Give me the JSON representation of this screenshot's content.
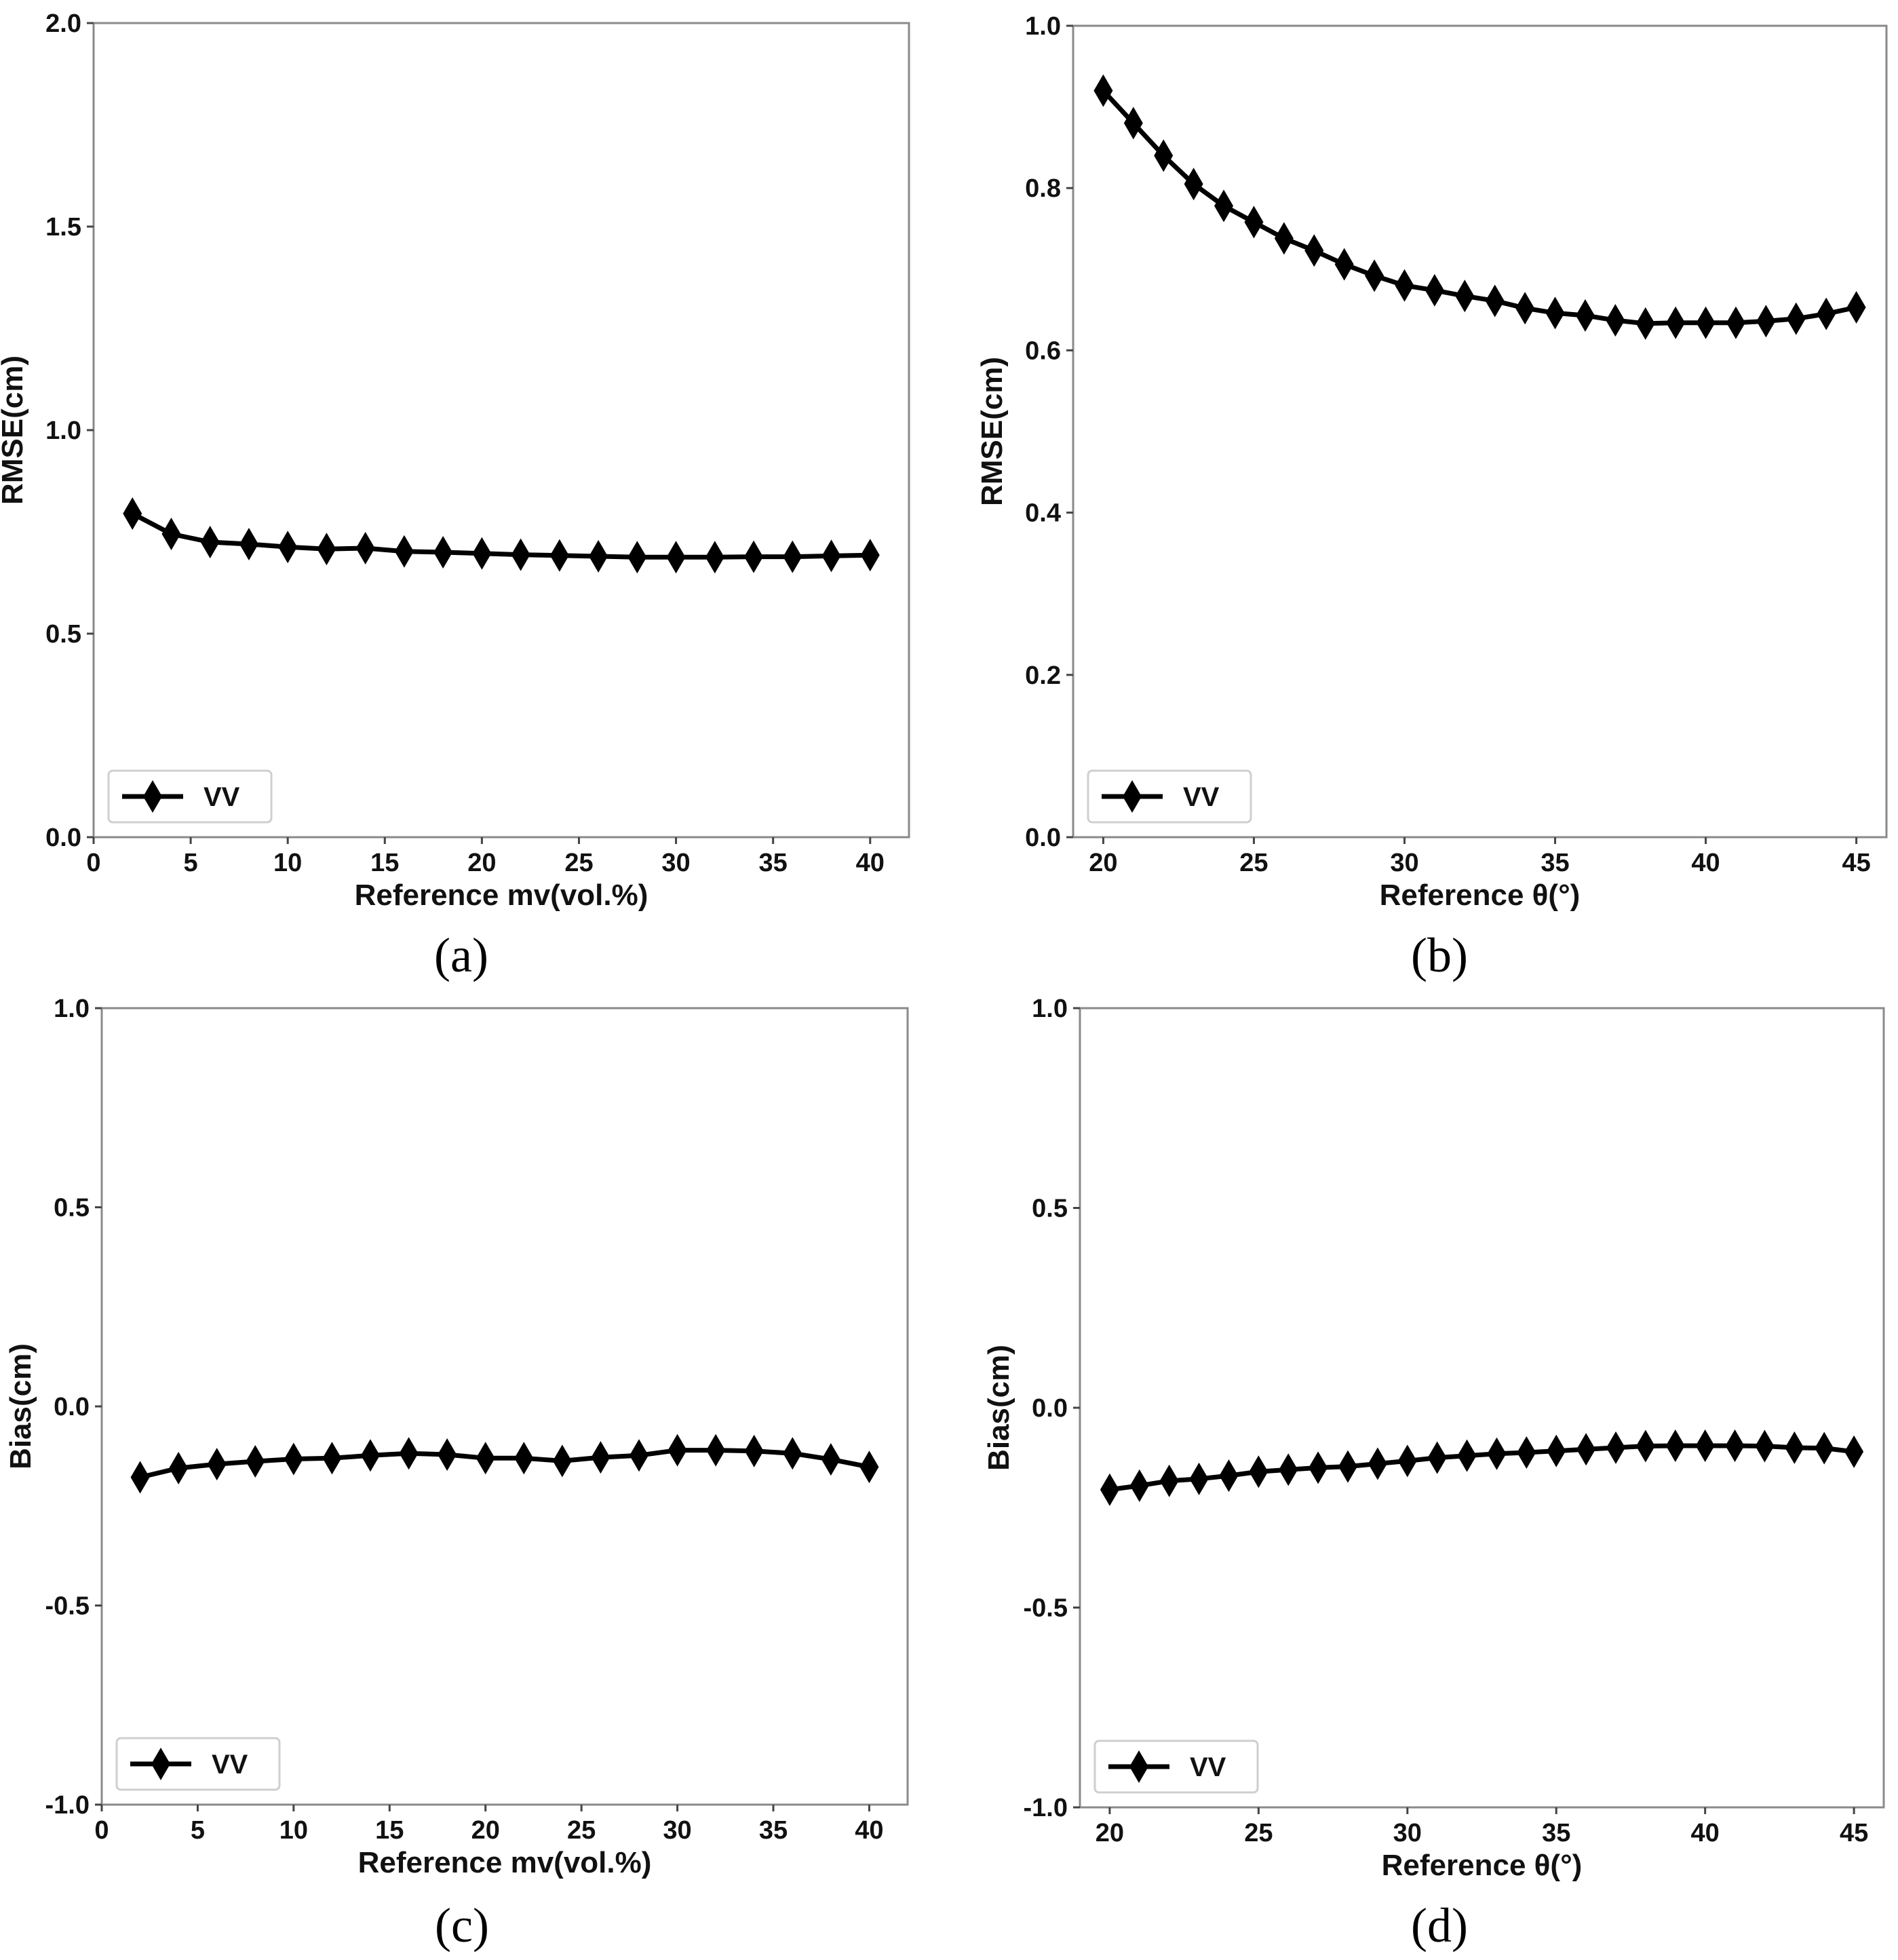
{
  "chart_data": [
    {
      "type": "line",
      "panel_label": "(a)",
      "xlabel": "Reference mv(vol.%)",
      "ylabel": "RMSE(cm)",
      "xlim": [
        0,
        42
      ],
      "ylim": [
        0.0,
        2.0
      ],
      "xticks": [
        0,
        5,
        10,
        15,
        20,
        25,
        30,
        35,
        40
      ],
      "xtick_labels": [
        "0",
        "5",
        "10",
        "15",
        "20",
        "25",
        "30",
        "35",
        "40"
      ],
      "yticks": [
        0.0,
        0.5,
        1.0,
        1.5,
        2.0
      ],
      "ytick_labels": [
        "0.0",
        "0.5",
        "1.0",
        "1.5",
        "2.0"
      ],
      "legend": "lower-left",
      "grid": false,
      "series": [
        {
          "name": "VV",
          "x": [
            2,
            4,
            6,
            8,
            10,
            12,
            14,
            16,
            18,
            20,
            22,
            24,
            26,
            28,
            30,
            32,
            34,
            36,
            38,
            40
          ],
          "y": [
            0.795,
            0.745,
            0.725,
            0.72,
            0.713,
            0.708,
            0.71,
            0.702,
            0.7,
            0.697,
            0.694,
            0.692,
            0.69,
            0.688,
            0.688,
            0.688,
            0.689,
            0.689,
            0.691,
            0.693
          ]
        }
      ]
    },
    {
      "type": "line",
      "panel_label": "(b)",
      "xlabel": "Reference θ(°)",
      "ylabel": "RMSE(cm)",
      "xlim": [
        19,
        46
      ],
      "ylim": [
        0.0,
        1.0
      ],
      "xticks": [
        20,
        25,
        30,
        35,
        40,
        45
      ],
      "xtick_labels": [
        "20",
        "25",
        "30",
        "35",
        "40",
        "45"
      ],
      "yticks": [
        0.0,
        0.2,
        0.4,
        0.6,
        0.8,
        1.0
      ],
      "ytick_labels": [
        "0.0",
        "0.2",
        "0.4",
        "0.6",
        "0.8",
        "1.0"
      ],
      "legend": "lower-left",
      "grid": false,
      "series": [
        {
          "name": "VV",
          "x": [
            20,
            21,
            22,
            23,
            24,
            25,
            26,
            27,
            28,
            29,
            30,
            31,
            32,
            33,
            34,
            35,
            36,
            37,
            38,
            39,
            40,
            41,
            42,
            43,
            44,
            45
          ],
          "y": [
            0.92,
            0.88,
            0.84,
            0.805,
            0.778,
            0.758,
            0.738,
            0.723,
            0.706,
            0.692,
            0.68,
            0.674,
            0.667,
            0.661,
            0.652,
            0.646,
            0.643,
            0.637,
            0.633,
            0.634,
            0.634,
            0.634,
            0.636,
            0.639,
            0.645,
            0.653
          ]
        }
      ]
    },
    {
      "type": "line",
      "panel_label": "(c)",
      "xlabel": "Reference mv(vol.%)",
      "ylabel": "Bias(cm)",
      "xlim": [
        0,
        42
      ],
      "ylim": [
        -1.0,
        1.0
      ],
      "xticks": [
        0,
        5,
        10,
        15,
        20,
        25,
        30,
        35,
        40
      ],
      "xtick_labels": [
        "0",
        "5",
        "10",
        "15",
        "20",
        "25",
        "30",
        "35",
        "40"
      ],
      "yticks": [
        -1.0,
        -0.5,
        0.0,
        0.5,
        1.0
      ],
      "ytick_labels": [
        "-1.0",
        "-0.5",
        "0.0",
        "0.5",
        "1.0"
      ],
      "legend": "lower-left",
      "grid": false,
      "series": [
        {
          "name": "VV",
          "x": [
            2,
            4,
            6,
            8,
            10,
            12,
            14,
            16,
            18,
            20,
            22,
            24,
            26,
            28,
            30,
            32,
            34,
            36,
            38,
            40
          ],
          "y": [
            -0.178,
            -0.155,
            -0.145,
            -0.138,
            -0.132,
            -0.13,
            -0.123,
            -0.118,
            -0.121,
            -0.13,
            -0.13,
            -0.137,
            -0.128,
            -0.123,
            -0.11,
            -0.11,
            -0.112,
            -0.118,
            -0.133,
            -0.152
          ]
        }
      ]
    },
    {
      "type": "line",
      "panel_label": "(d)",
      "xlabel": "Reference θ(°)",
      "ylabel": "Bias(cm)",
      "xlim": [
        19,
        46
      ],
      "ylim": [
        -1.0,
        1.0
      ],
      "xticks": [
        20,
        25,
        30,
        35,
        40,
        45
      ],
      "xtick_labels": [
        "20",
        "25",
        "30",
        "35",
        "40",
        "45"
      ],
      "yticks": [
        -1.0,
        -0.5,
        0.0,
        0.5,
        1.0
      ],
      "ytick_labels": [
        "-1.0",
        "-0.5",
        "0.0",
        "0.5",
        "1.0"
      ],
      "legend": "lower-left",
      "grid": false,
      "series": [
        {
          "name": "VV",
          "x": [
            20,
            21,
            22,
            23,
            24,
            25,
            26,
            27,
            28,
            29,
            30,
            31,
            32,
            33,
            34,
            35,
            36,
            37,
            38,
            39,
            40,
            41,
            42,
            43,
            44,
            45
          ],
          "y": [
            -0.205,
            -0.195,
            -0.183,
            -0.178,
            -0.17,
            -0.16,
            -0.155,
            -0.15,
            -0.147,
            -0.14,
            -0.133,
            -0.125,
            -0.12,
            -0.115,
            -0.112,
            -0.108,
            -0.104,
            -0.1,
            -0.096,
            -0.095,
            -0.095,
            -0.095,
            -0.096,
            -0.1,
            -0.101,
            -0.11
          ]
        }
      ]
    }
  ]
}
